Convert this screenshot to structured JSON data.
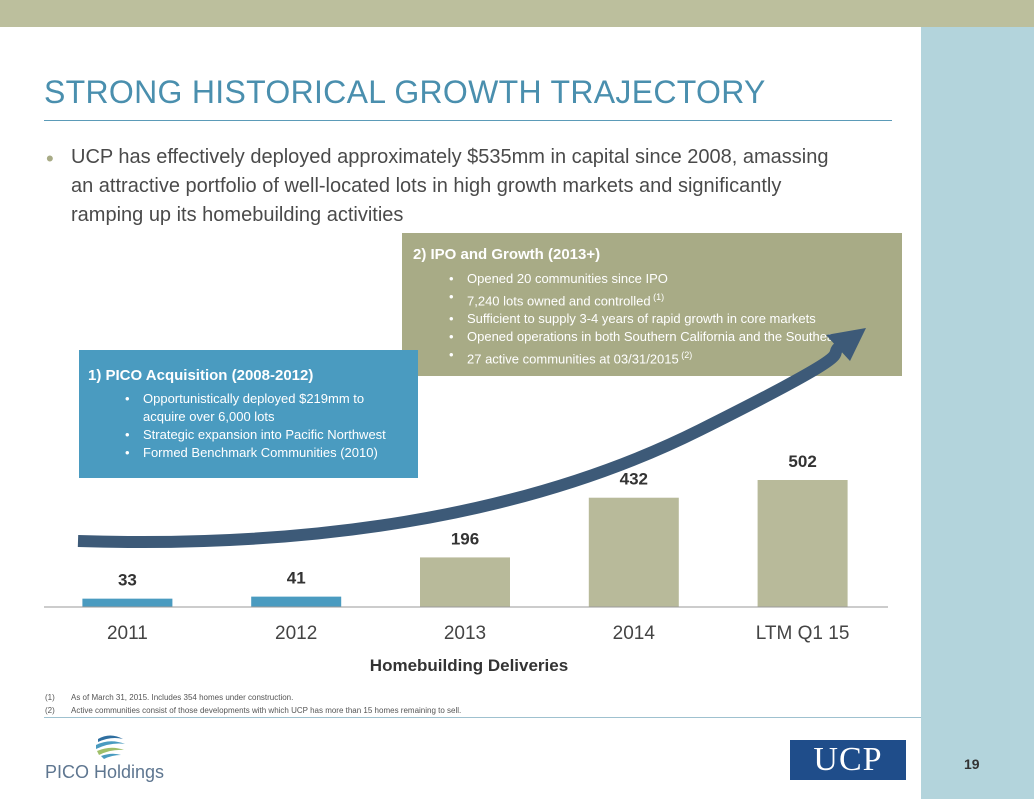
{
  "slide": {
    "title": "STRONG HISTORICAL GROWTH TRAJECTORY",
    "bullet": "UCP has effectively deployed approximately $535mm in capital since 2008, amassing an attractive portfolio of well-located lots in high growth markets and significantly ramping up its homebuilding activities",
    "page_number": "19"
  },
  "callout_ipo": {
    "heading": "2)   IPO and Growth (2013+)",
    "items": [
      {
        "text": "Opened 20 communities since IPO",
        "sup": ""
      },
      {
        "text": "7,240 lots owned and controlled",
        "sup": "(1)"
      },
      {
        "text": "Sufficient to supply 3-4 years of rapid growth in core markets",
        "sup": ""
      },
      {
        "text": "Opened operations in both Southern California and the Southeast",
        "sup": ""
      },
      {
        "text": "27 active communities at 03/31/2015",
        "sup": "(2)"
      }
    ]
  },
  "callout_pico": {
    "heading": "1)  PICO Acquisition (2008-2012)",
    "items": [
      "Opportunistically deployed $219mm to acquire over 6,000 lots",
      "Strategic expansion into Pacific Northwest",
      "Formed Benchmark Communities (2010)"
    ]
  },
  "chart_data": {
    "type": "bar",
    "title": "",
    "xlabel": "Homebuilding Deliveries",
    "ylabel": "",
    "categories": [
      "2011",
      "2012",
      "2013",
      "2014",
      "LTM Q1 15"
    ],
    "values": [
      33,
      41,
      196,
      432,
      502
    ],
    "bar_colors": [
      "#4a9bc0",
      "#4a9bc0",
      "#b8ba9a",
      "#b8ba9a",
      "#b8ba9a"
    ],
    "data_labels": [
      "33",
      "41",
      "196",
      "432",
      "502"
    ],
    "ylim": [
      0,
      600
    ],
    "grid": false,
    "legend": "none"
  },
  "footnotes": [
    {
      "num": "(1)",
      "text": "As of March 31, 2015. Includes 354 homes under construction."
    },
    {
      "num": "(2)",
      "text": "Active communities consist of those developments with which UCP has more than 15 homes remaining to sell."
    }
  ],
  "logos": {
    "pico": "PICO Holdings",
    "ucp": "UCP"
  },
  "colors": {
    "title": "#4a8fae",
    "arrow": "#3d5a78",
    "ipo_box": "#a8ab86",
    "pico_box": "#4a9bc0"
  }
}
